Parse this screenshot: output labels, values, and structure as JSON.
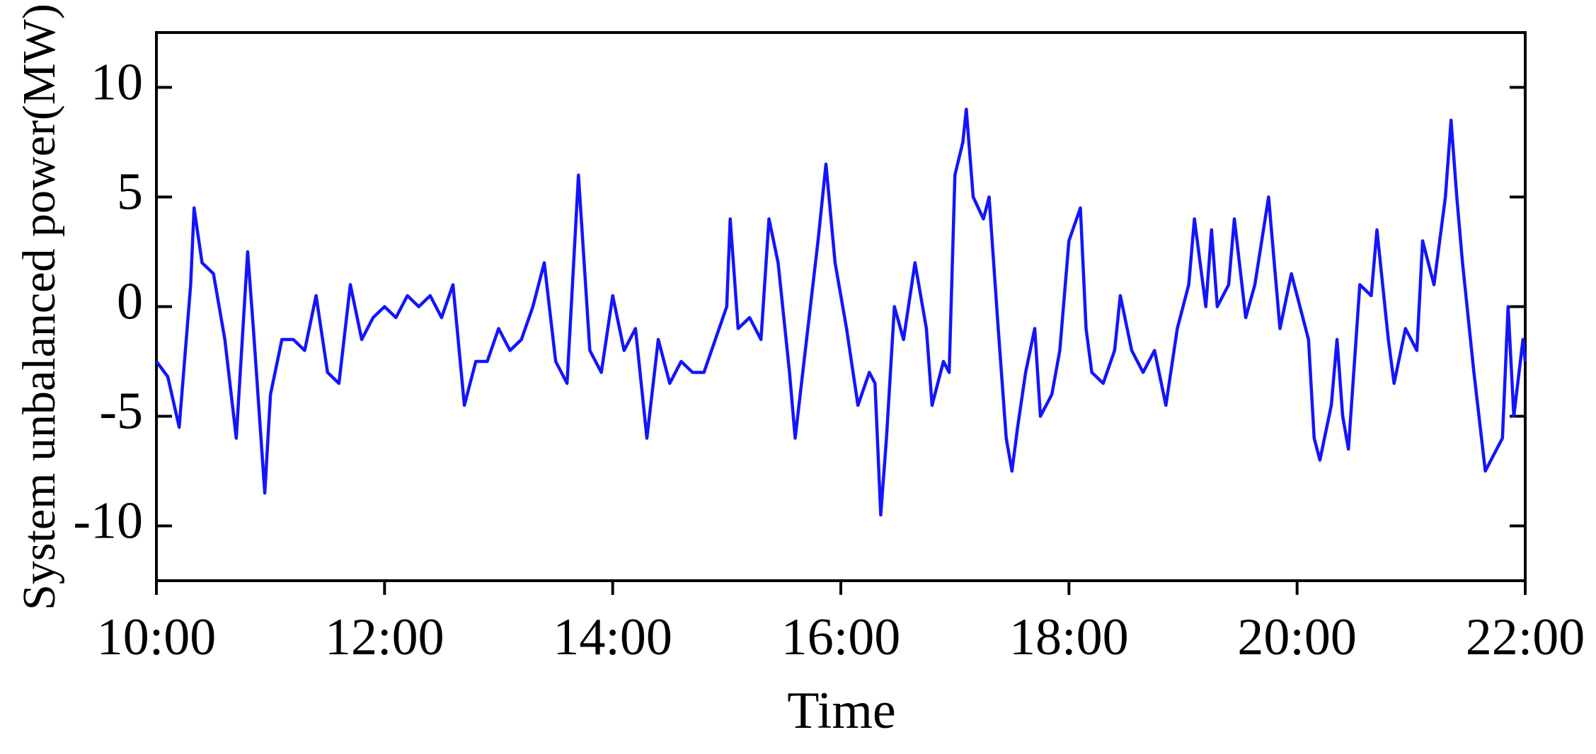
{
  "chart_data": {
    "type": "line",
    "x_label": "Time",
    "y_label": "System unbalanced power(MW)",
    "x": [
      10.0,
      10.1,
      10.2,
      10.3,
      10.33,
      10.4,
      10.5,
      10.6,
      10.7,
      10.8,
      10.85,
      10.95,
      11.0,
      11.1,
      11.2,
      11.3,
      11.4,
      11.5,
      11.6,
      11.7,
      11.8,
      11.9,
      12.0,
      12.1,
      12.2,
      12.3,
      12.4,
      12.5,
      12.6,
      12.7,
      12.8,
      12.9,
      13.0,
      13.1,
      13.2,
      13.3,
      13.4,
      13.5,
      13.6,
      13.7,
      13.8,
      13.9,
      14.0,
      14.1,
      14.2,
      14.3,
      14.4,
      14.5,
      14.6,
      14.7,
      14.8,
      14.9,
      15.0,
      15.03,
      15.1,
      15.2,
      15.3,
      15.37,
      15.45,
      15.55,
      15.6,
      15.7,
      15.8,
      15.87,
      15.95,
      16.05,
      16.15,
      16.25,
      16.3,
      16.35,
      16.4,
      16.47,
      16.55,
      16.65,
      16.75,
      16.8,
      16.9,
      16.95,
      17.0,
      17.07,
      17.1,
      17.16,
      17.25,
      17.3,
      17.38,
      17.45,
      17.5,
      17.55,
      17.62,
      17.7,
      17.75,
      17.85,
      17.92,
      18.0,
      18.1,
      18.15,
      18.2,
      18.3,
      18.4,
      18.45,
      18.55,
      18.65,
      18.75,
      18.85,
      18.95,
      19.05,
      19.1,
      19.2,
      19.25,
      19.3,
      19.4,
      19.45,
      19.55,
      19.63,
      19.75,
      19.8,
      19.85,
      19.95,
      20.0,
      20.1,
      20.15,
      20.2,
      20.3,
      20.35,
      20.4,
      20.45,
      20.55,
      20.65,
      20.7,
      20.8,
      20.85,
      20.95,
      21.05,
      21.1,
      21.2,
      21.3,
      21.35,
      21.4,
      21.45,
      21.55,
      21.65,
      21.7,
      21.8,
      21.85,
      21.9,
      21.98,
      22.0
    ],
    "values": [
      -2.5,
      -3.2,
      -5.5,
      1,
      4.5,
      2,
      1.5,
      -1.5,
      -6,
      2.5,
      -1,
      -8.5,
      -4,
      -1.5,
      -1.5,
      -2,
      0.5,
      -3,
      -3.5,
      1,
      -1.5,
      -0.5,
      0,
      -0.5,
      0.5,
      0,
      0.5,
      -0.5,
      1,
      -4.5,
      -2.5,
      -2.5,
      -1,
      -2,
      -1.5,
      0,
      2,
      -2.5,
      -3.5,
      6,
      -2,
      -3,
      0.5,
      -2,
      -1,
      -6,
      -1.5,
      -3.5,
      -2.5,
      -3,
      -3,
      -1.5,
      0,
      4,
      -1,
      -0.5,
      -1.5,
      4,
      2,
      -3,
      -6,
      -1.5,
      3,
      6.5,
      2,
      -1,
      -4.5,
      -3,
      -3.5,
      -9.5,
      -6,
      0,
      -1.5,
      2,
      -1,
      -4.5,
      -2.5,
      -3,
      6,
      7.5,
      9,
      5,
      4,
      5,
      -1,
      -6,
      -7.5,
      -5.5,
      -3,
      -1,
      -5,
      -4,
      -2,
      3,
      4.5,
      -1,
      -3,
      -3.5,
      -2,
      0.5,
      -2,
      -3,
      -2,
      -4.5,
      -1,
      1,
      4,
      0,
      3.5,
      0,
      1,
      4,
      -0.5,
      1,
      5,
      2,
      -1,
      1.5,
      0.5,
      -1.5,
      -6,
      -7,
      -4.5,
      -1.5,
      -5,
      -6.5,
      1,
      0.5,
      3.5,
      -1.5,
      -3.5,
      -1,
      -2,
      3,
      1,
      5,
      8.5,
      5,
      2,
      -3,
      -7.5,
      -7,
      -6,
      0,
      -5,
      -1.5,
      -2.5
    ],
    "color": "#1414ff",
    "xlim": [
      10,
      22
    ],
    "xticks": [
      {
        "value": 10,
        "label": "10:00"
      },
      {
        "value": 12,
        "label": "12:00"
      },
      {
        "value": 14,
        "label": "14:00"
      },
      {
        "value": 16,
        "label": "16:00"
      },
      {
        "value": 18,
        "label": "18:00"
      },
      {
        "value": 20,
        "label": "20:00"
      },
      {
        "value": 22,
        "label": "22:00"
      }
    ],
    "ylim": [
      -12.5,
      12.5
    ],
    "yticks": [
      -10,
      -5,
      0,
      5,
      10
    ]
  }
}
